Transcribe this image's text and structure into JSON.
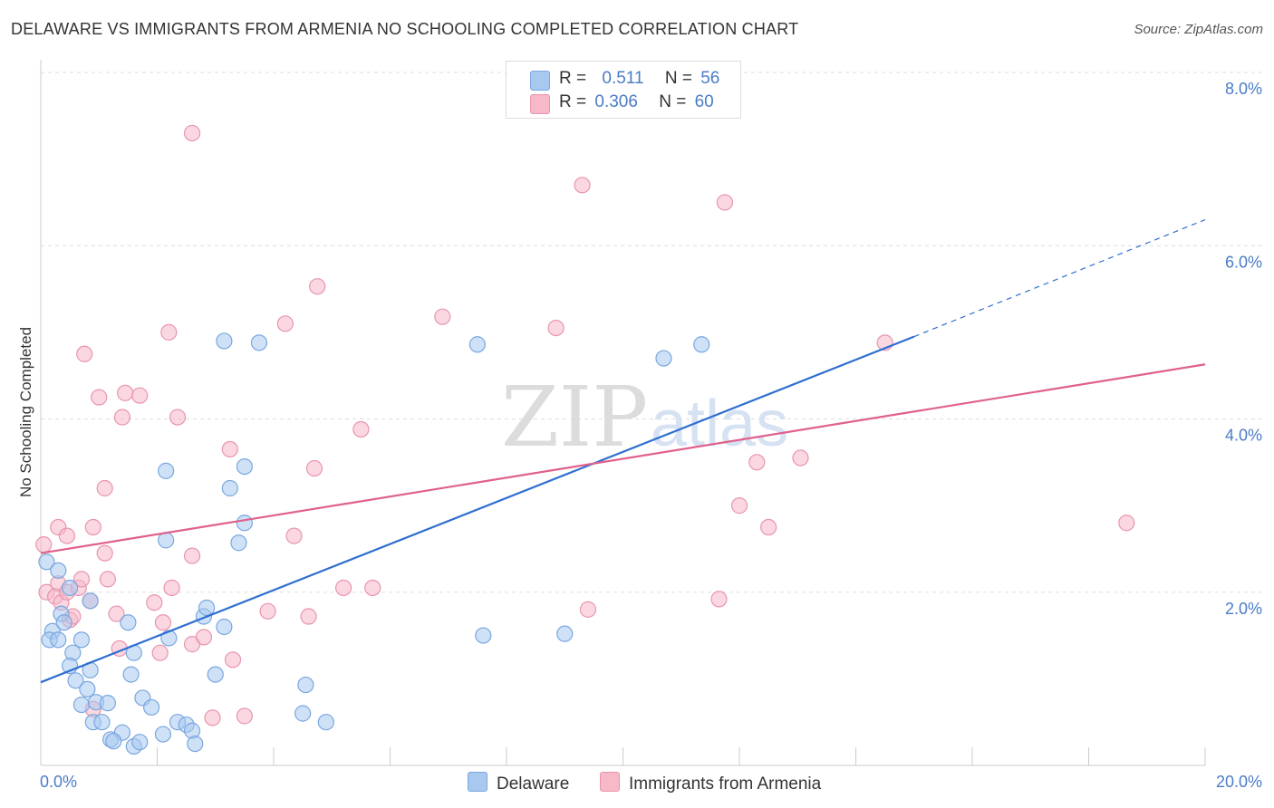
{
  "title": "DELAWARE VS IMMIGRANTS FROM ARMENIA NO SCHOOLING COMPLETED CORRELATION CHART",
  "source": "Source: ZipAtlas.com",
  "watermark": {
    "zip": "ZIP",
    "atlas": "atlas"
  },
  "legend": {
    "r_label": "R =",
    "n_label": "N =",
    "series": [
      {
        "r": "0.511",
        "n": "56",
        "color": "#a8c8f0"
      },
      {
        "r": "0.306",
        "n": "60",
        "color": "#f7b8c8"
      }
    ]
  },
  "bottom_legend": [
    "Delaware",
    "Immigrants from Armenia"
  ],
  "colors": {
    "blue_fill": "#a8c8f0",
    "blue_stroke": "#7aa7df",
    "blue_line": "#2f6fd0",
    "pink_fill": "#f7b8c8",
    "pink_stroke": "#e895ad",
    "pink_line": "#e0608c",
    "grid": "#dddddd",
    "tick_text": "#4a7cc7"
  },
  "chart_data": {
    "type": "scatter",
    "title": "DELAWARE VS IMMIGRANTS FROM ARMENIA NO SCHOOLING COMPLETED CORRELATION CHART",
    "xlabel": "",
    "ylabel": "No Schooling Completed",
    "xlim": [
      0,
      20
    ],
    "ylim": [
      0,
      8
    ],
    "x_tick_labels": [
      "0.0%",
      "20.0%"
    ],
    "y_ticks": [
      2,
      4,
      6,
      8
    ],
    "y_tick_labels": [
      "2.0%",
      "4.0%",
      "6.0%",
      "8.0%"
    ],
    "grid": true,
    "legend_position": "top-center",
    "series": [
      {
        "name": "Delaware",
        "color": "#a8c8f0",
        "trend": {
          "x": [
            0,
            15
          ],
          "y": [
            0.96,
            4.95
          ],
          "dashed_to": [
            20,
            6.3
          ]
        },
        "points": [
          [
            0.1,
            2.35
          ],
          [
            0.3,
            2.25
          ],
          [
            0.5,
            2.05
          ],
          [
            0.2,
            1.55
          ],
          [
            0.35,
            1.75
          ],
          [
            0.4,
            1.65
          ],
          [
            0.15,
            1.45
          ],
          [
            0.3,
            1.45
          ],
          [
            0.55,
            1.3
          ],
          [
            0.7,
            1.45
          ],
          [
            0.85,
            1.9
          ],
          [
            0.5,
            1.15
          ],
          [
            0.85,
            1.1
          ],
          [
            1.5,
            1.65
          ],
          [
            1.6,
            1.3
          ],
          [
            1.55,
            1.05
          ],
          [
            0.6,
            0.98
          ],
          [
            0.8,
            0.88
          ],
          [
            0.7,
            0.7
          ],
          [
            0.95,
            0.73
          ],
          [
            1.15,
            0.72
          ],
          [
            1.75,
            0.78
          ],
          [
            1.9,
            0.67
          ],
          [
            0.9,
            0.5
          ],
          [
            1.05,
            0.5
          ],
          [
            1.4,
            0.38
          ],
          [
            1.2,
            0.3
          ],
          [
            1.25,
            0.28
          ],
          [
            1.6,
            0.22
          ],
          [
            1.7,
            0.27
          ],
          [
            2.1,
            0.36
          ],
          [
            2.35,
            0.5
          ],
          [
            2.5,
            0.47
          ],
          [
            2.6,
            0.4
          ],
          [
            2.65,
            0.25
          ],
          [
            2.2,
            1.47
          ],
          [
            2.8,
            1.72
          ],
          [
            2.85,
            1.82
          ],
          [
            3.0,
            1.05
          ],
          [
            3.15,
            1.6
          ],
          [
            2.15,
            2.6
          ],
          [
            3.4,
            2.57
          ],
          [
            3.5,
            2.8
          ],
          [
            2.15,
            3.4
          ],
          [
            3.25,
            3.2
          ],
          [
            3.5,
            3.45
          ],
          [
            3.15,
            4.9
          ],
          [
            3.75,
            4.88
          ],
          [
            4.5,
            0.6
          ],
          [
            4.55,
            0.93
          ],
          [
            4.9,
            0.5
          ],
          [
            7.5,
            4.86
          ],
          [
            7.6,
            1.5
          ],
          [
            9.0,
            1.52
          ],
          [
            10.7,
            4.7
          ],
          [
            11.35,
            4.86
          ]
        ]
      },
      {
        "name": "Immigrants from Armenia",
        "color": "#f7b8c8",
        "trend": {
          "x": [
            0,
            20
          ],
          "y": [
            2.45,
            4.63
          ]
        },
        "points": [
          [
            0.05,
            2.55
          ],
          [
            0.1,
            2.0
          ],
          [
            0.3,
            2.1
          ],
          [
            0.25,
            1.95
          ],
          [
            0.35,
            1.88
          ],
          [
            0.45,
            2.0
          ],
          [
            0.5,
            1.68
          ],
          [
            0.55,
            1.72
          ],
          [
            0.3,
            2.75
          ],
          [
            0.45,
            2.65
          ],
          [
            0.65,
            2.05
          ],
          [
            0.7,
            2.15
          ],
          [
            0.85,
            1.9
          ],
          [
            0.9,
            0.65
          ],
          [
            0.9,
            2.75
          ],
          [
            1.1,
            2.45
          ],
          [
            1.15,
            2.15
          ],
          [
            1.3,
            1.75
          ],
          [
            1.35,
            1.35
          ],
          [
            1.1,
            3.2
          ],
          [
            1.0,
            4.25
          ],
          [
            1.4,
            4.02
          ],
          [
            1.45,
            4.3
          ],
          [
            1.7,
            4.27
          ],
          [
            0.75,
            4.75
          ],
          [
            1.95,
            1.88
          ],
          [
            2.05,
            1.3
          ],
          [
            2.1,
            1.65
          ],
          [
            2.25,
            2.05
          ],
          [
            2.6,
            1.4
          ],
          [
            2.6,
            2.42
          ],
          [
            2.8,
            1.48
          ],
          [
            2.95,
            0.55
          ],
          [
            3.3,
            1.22
          ],
          [
            3.5,
            0.57
          ],
          [
            3.25,
            3.65
          ],
          [
            2.35,
            4.02
          ],
          [
            2.2,
            5.0
          ],
          [
            2.6,
            7.3
          ],
          [
            3.9,
            1.78
          ],
          [
            4.35,
            2.65
          ],
          [
            4.6,
            1.72
          ],
          [
            4.7,
            3.43
          ],
          [
            5.2,
            2.05
          ],
          [
            5.5,
            3.88
          ],
          [
            4.2,
            5.1
          ],
          [
            4.75,
            5.53
          ],
          [
            5.7,
            2.05
          ],
          [
            6.9,
            5.18
          ],
          [
            8.85,
            5.05
          ],
          [
            9.3,
            6.7
          ],
          [
            9.4,
            1.8
          ],
          [
            11.65,
            1.92
          ],
          [
            11.75,
            6.5
          ],
          [
            12.0,
            3.0
          ],
          [
            12.3,
            3.5
          ],
          [
            12.5,
            2.75
          ],
          [
            13.05,
            3.55
          ],
          [
            14.5,
            4.88
          ],
          [
            18.65,
            2.8
          ]
        ]
      }
    ]
  }
}
